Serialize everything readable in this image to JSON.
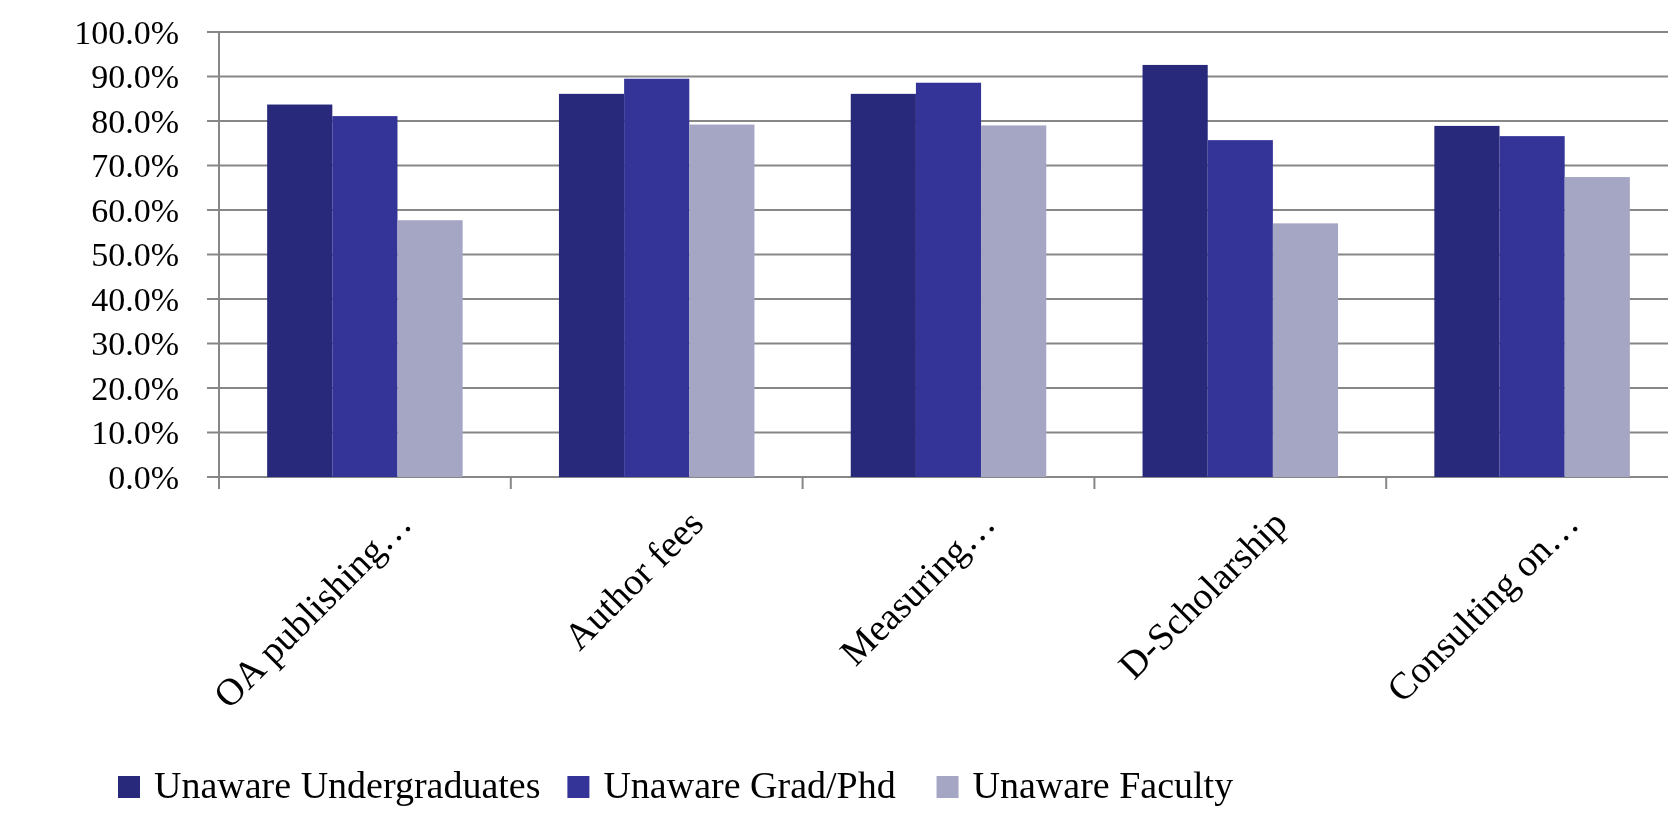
{
  "chart_data": {
    "type": "bar",
    "categories": [
      "OA publishing…",
      "Author fees",
      "Measuring…",
      "D-Scholarship",
      "Consulting on…"
    ],
    "series": [
      {
        "name": "Unaware Undergraduates",
        "color": "#29297c",
        "values": [
          83.7,
          86.1,
          86.1,
          92.6,
          78.9
        ]
      },
      {
        "name": "Unaware Grad/Phd",
        "color": "#343498",
        "values": [
          81.1,
          89.5,
          88.6,
          75.7,
          76.6
        ]
      },
      {
        "name": "Unaware Faculty",
        "color": "#a5a5c4",
        "values": [
          57.7,
          79.2,
          79.0,
          57.0,
          67.4
        ]
      }
    ],
    "ylim": [
      0,
      100
    ],
    "yticks": [
      {
        "value": 0,
        "label": "0.0%"
      },
      {
        "value": 10,
        "label": "10.0%"
      },
      {
        "value": 20,
        "label": "20.0%"
      },
      {
        "value": 30,
        "label": "30.0%"
      },
      {
        "value": 40,
        "label": "40.0%"
      },
      {
        "value": 50,
        "label": "50.0%"
      },
      {
        "value": 60,
        "label": "60.0%"
      },
      {
        "value": 70,
        "label": "70.0%"
      },
      {
        "value": 80,
        "label": "80.0%"
      },
      {
        "value": 90,
        "label": "90.0%"
      },
      {
        "value": 100,
        "label": "100.0%"
      }
    ],
    "grid": "y",
    "legend": "bottom"
  }
}
